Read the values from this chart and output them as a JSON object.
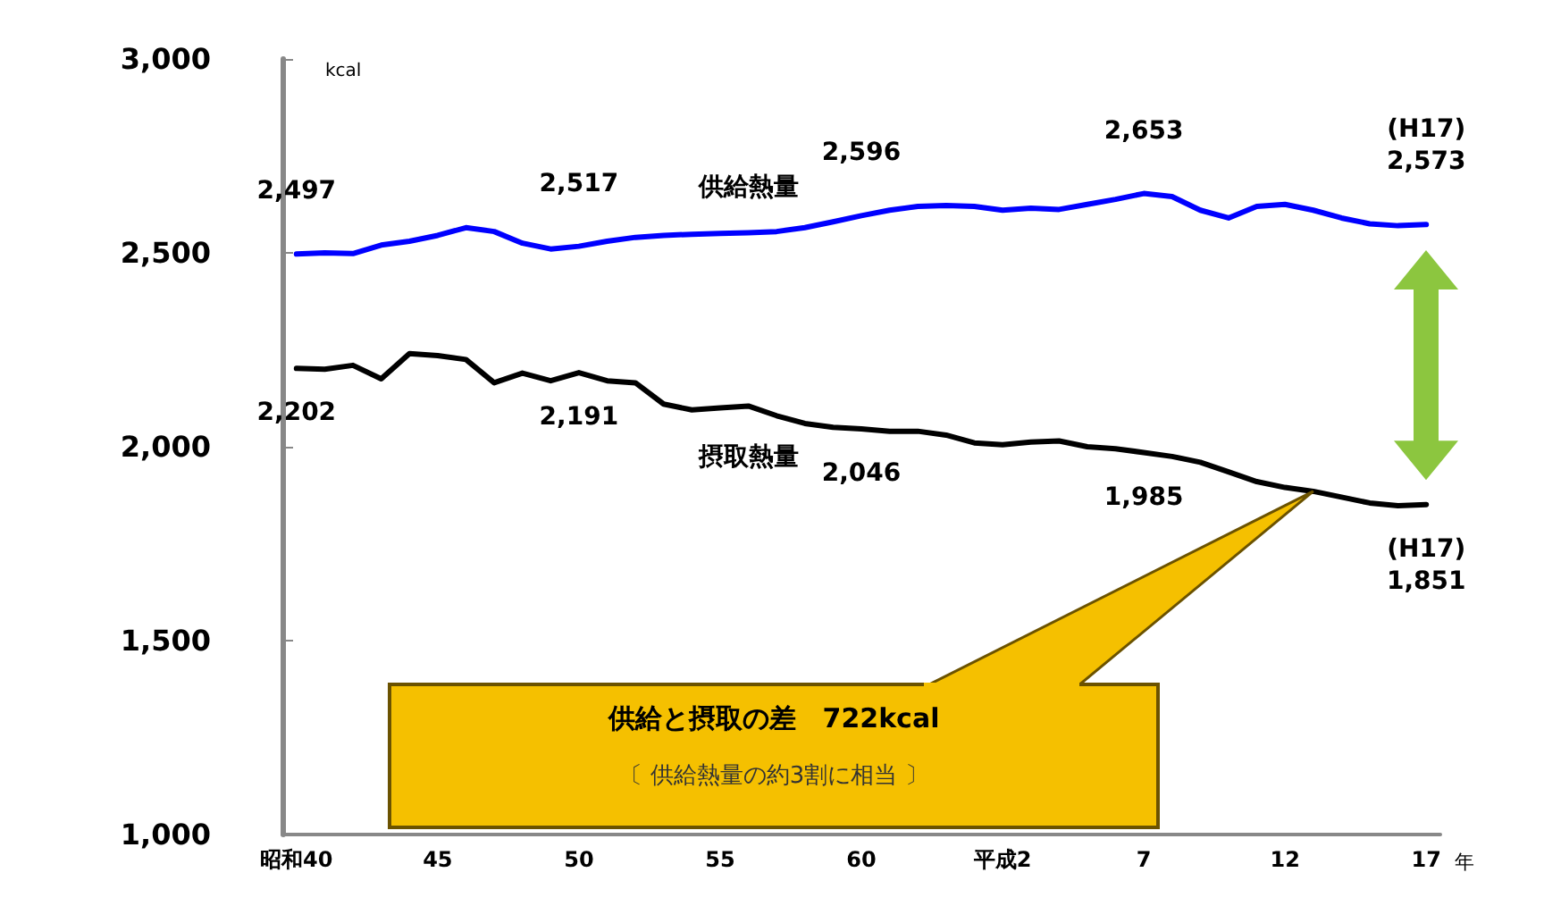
{
  "chart_data": {
    "type": "line",
    "xlabel": "年",
    "ylabel": "kcal",
    "marker": "none",
    "line_style": "solid",
    "categories": [
      "昭和40",
      null,
      null,
      null,
      null,
      "45",
      null,
      null,
      null,
      null,
      "50",
      null,
      null,
      null,
      null,
      "55",
      null,
      null,
      null,
      null,
      "60",
      null,
      null,
      null,
      null,
      "平成2",
      null,
      null,
      null,
      null,
      "7",
      null,
      null,
      null,
      null,
      "12",
      null,
      null,
      null,
      null,
      "17"
    ],
    "ylim": [
      1000,
      3000
    ],
    "yticks": [
      {
        "value": 1000,
        "label": "1,000"
      },
      {
        "value": 1500,
        "label": "1,500"
      },
      {
        "value": 2000,
        "label": "2,000"
      },
      {
        "value": 2500,
        "label": "2,500"
      },
      {
        "value": 3000,
        "label": "3,000"
      }
    ],
    "annotations": [
      "供給と摂取の差　722kcal",
      "〔 供給熱量の約3割に相当 〕"
    ],
    "series": [
      {
        "name": "供給熱量",
        "color": "#0000ff",
        "values": [
          2497,
          2500,
          2498,
          2520,
          2530,
          2545,
          2565,
          2555,
          2525,
          2510,
          2517,
          2530,
          2540,
          2545,
          2548,
          2550,
          2552,
          2555,
          2565,
          2580,
          2596,
          2610,
          2620,
          2622,
          2620,
          2610,
          2615,
          2612,
          2625,
          2638,
          2653,
          2645,
          2610,
          2590,
          2620,
          2625,
          2610,
          2590,
          2575,
          2570,
          2573
        ],
        "value_labels": [
          "2,497",
          null,
          null,
          null,
          null,
          null,
          null,
          null,
          null,
          null,
          "2,517",
          null,
          null,
          null,
          null,
          null,
          null,
          null,
          null,
          null,
          "2,596",
          null,
          null,
          null,
          null,
          null,
          null,
          null,
          null,
          null,
          "2,653",
          null,
          null,
          null,
          null,
          null,
          null,
          null,
          null,
          null,
          "(H17)\n2,573"
        ]
      },
      {
        "name": "摂取熱量",
        "color": "#000000",
        "values": [
          2202,
          2200,
          2210,
          2175,
          2240,
          2235,
          2225,
          2165,
          2190,
          2170,
          2191,
          2170,
          2165,
          2110,
          2095,
          2100,
          2105,
          2080,
          2060,
          2050,
          2046,
          2040,
          2040,
          2030,
          2010,
          2005,
          2012,
          2015,
          2000,
          1995,
          1985,
          1975,
          1960,
          1935,
          1910,
          1895,
          1885,
          1870,
          1855,
          1848,
          1851
        ],
        "value_labels": [
          "2,202",
          null,
          null,
          null,
          null,
          null,
          null,
          null,
          null,
          null,
          "2,191",
          null,
          null,
          null,
          null,
          null,
          null,
          null,
          null,
          null,
          "2,046",
          null,
          null,
          null,
          null,
          null,
          null,
          null,
          null,
          null,
          "1,985",
          null,
          null,
          null,
          null,
          null,
          null,
          null,
          null,
          null,
          "(H17)\n1,851"
        ]
      }
    ]
  }
}
